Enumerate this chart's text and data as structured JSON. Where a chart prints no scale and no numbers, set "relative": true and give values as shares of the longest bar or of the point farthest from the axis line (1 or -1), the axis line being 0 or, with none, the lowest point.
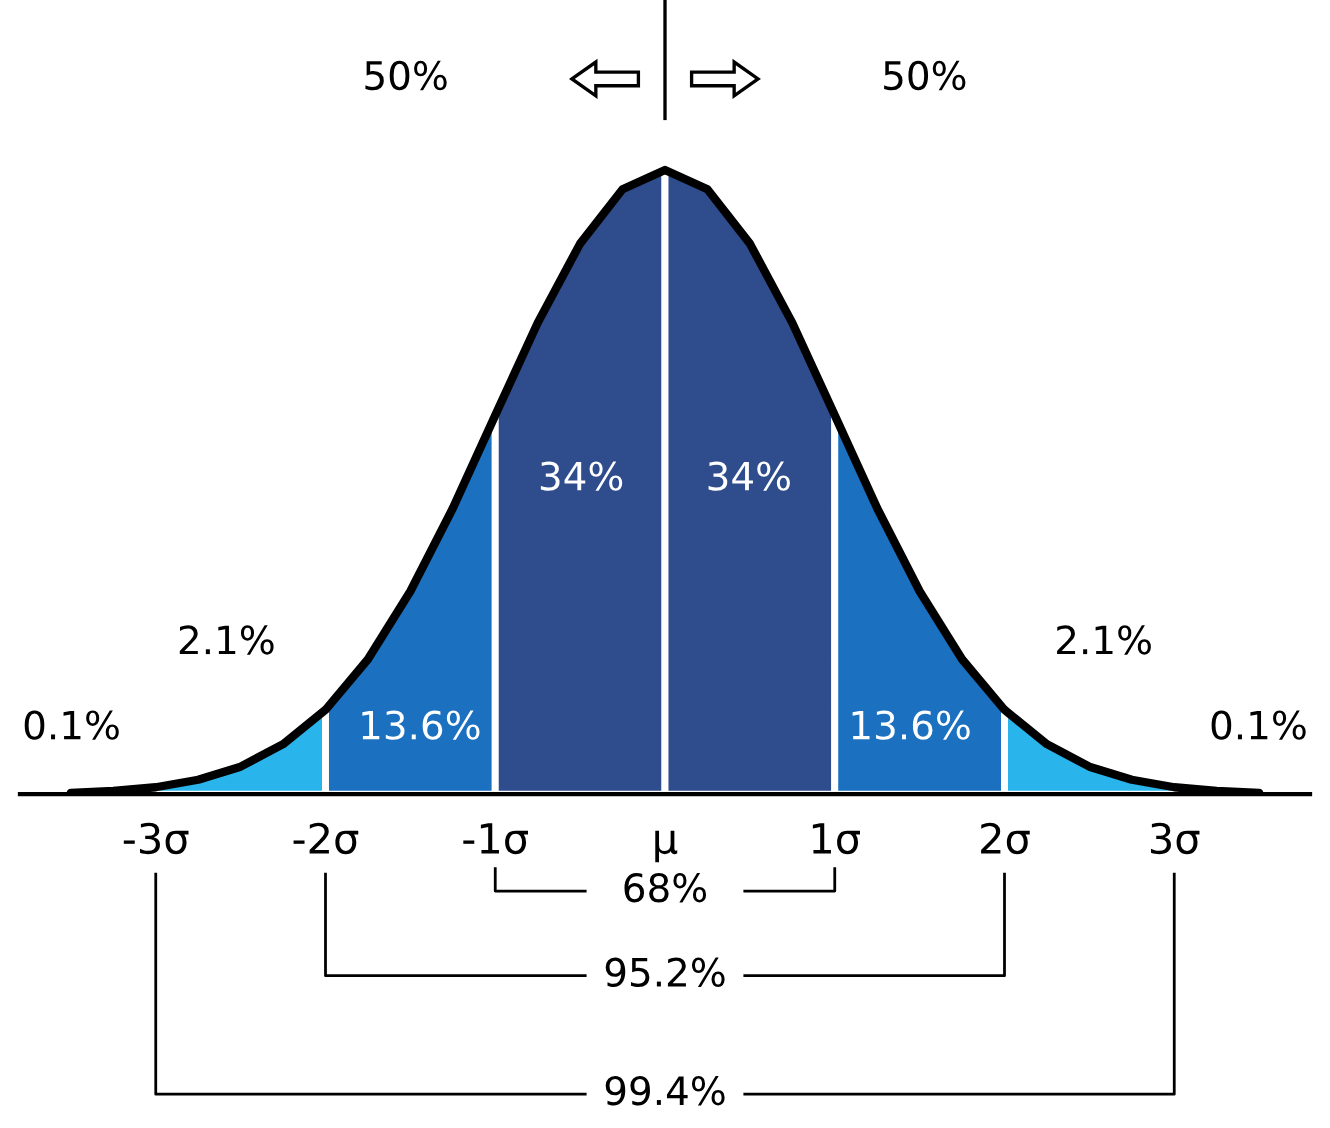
{
  "chart_data": {
    "type": "area",
    "relative": true,
    "xlim": [
      -3.8,
      3.8
    ],
    "xticks": [
      {
        "value": -3,
        "label": "-3σ"
      },
      {
        "value": -2,
        "label": "-2σ"
      },
      {
        "value": -1,
        "label": "-1σ"
      },
      {
        "value": 0,
        "label": "μ"
      },
      {
        "value": 1,
        "label": "1σ"
      },
      {
        "value": 2,
        "label": "2σ"
      },
      {
        "value": 3,
        "label": "3σ"
      }
    ],
    "series": [
      {
        "color": "#29b5ec",
        "x": [
          -3,
          -2.75,
          -2.5,
          -2.25,
          -2
        ],
        "values": [
          0.011,
          0.023,
          0.044,
          0.08,
          0.135
        ]
      },
      {
        "color": "#1b70c0",
        "x": [
          -2,
          -1.75,
          -1.5,
          -1.25,
          -1
        ],
        "values": [
          0.135,
          0.216,
          0.325,
          0.458,
          0.607
        ]
      },
      {
        "color": "#2f4d8d",
        "x": [
          -1,
          -0.75,
          -0.5,
          -0.25,
          0
        ],
        "values": [
          0.607,
          0.755,
          0.882,
          0.969,
          1
        ]
      },
      {
        "color": "#2f4d8d",
        "x": [
          0,
          0.25,
          0.5,
          0.75,
          1
        ],
        "values": [
          1,
          0.969,
          0.882,
          0.755,
          0.607
        ]
      },
      {
        "color": "#1b70c0",
        "x": [
          1,
          1.25,
          1.5,
          1.75,
          2
        ],
        "values": [
          0.607,
          0.458,
          0.325,
          0.216,
          0.135
        ]
      },
      {
        "color": "#29b5ec",
        "x": [
          2,
          2.25,
          2.5,
          2.75,
          3
        ],
        "values": [
          0.135,
          0.08,
          0.044,
          0.023,
          0.011
        ]
      },
      {
        "type": "line",
        "color": "#000000",
        "x": [
          -3.5,
          -3.25,
          -3,
          -2.75,
          -2.5,
          -2.25,
          -2,
          -1.75,
          -1.5,
          -1.25,
          -1,
          -0.75,
          -0.5,
          -0.25,
          0,
          0.25,
          0.5,
          0.75,
          1,
          1.25,
          1.5,
          1.75,
          2,
          2.25,
          2.5,
          2.75,
          3,
          3.25,
          3.5
        ],
        "values": [
          0.002,
          0.005,
          0.011,
          0.023,
          0.044,
          0.08,
          0.135,
          0.216,
          0.325,
          0.458,
          0.607,
          0.755,
          0.882,
          0.969,
          1,
          0.969,
          0.882,
          0.755,
          0.607,
          0.458,
          0.325,
          0.216,
          0.135,
          0.08,
          0.044,
          0.023,
          0.011,
          0.005,
          0.002
        ]
      }
    ],
    "annotations": [
      "34%",
      "34%",
      "13.6%",
      "13.6%",
      "2.1%",
      "2.1%",
      "0.1%",
      "0.1%",
      "50%",
      "50%",
      "68%",
      "95.2%",
      "99.4%"
    ]
  }
}
